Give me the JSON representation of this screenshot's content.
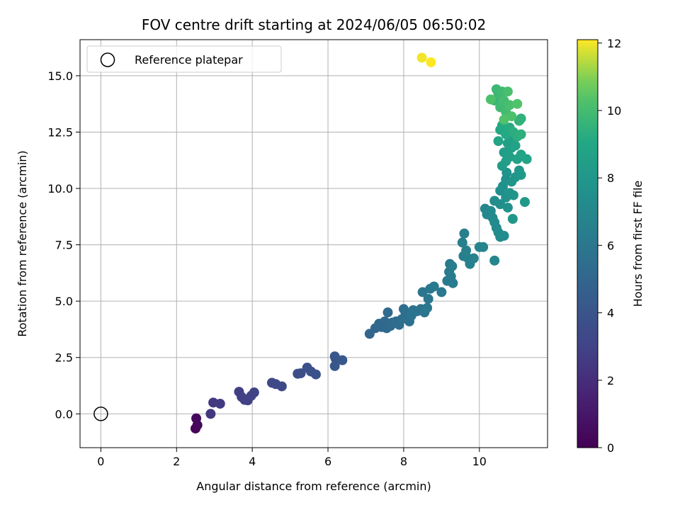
{
  "chart_data": {
    "type": "scatter",
    "title": "FOV centre drift starting at 2024/06/05 06:50:02",
    "xlabel": "Angular distance from reference (arcmin)",
    "ylabel": "Rotation from reference (arcmin)",
    "xlim": [
      -0.55,
      11.8
    ],
    "ylim": [
      -1.5,
      16.6
    ],
    "xticks": [
      0,
      2,
      4,
      6,
      8,
      10
    ],
    "xtick_labels": [
      "0",
      "2",
      "4",
      "6",
      "8",
      "10"
    ],
    "yticks": [
      0,
      2.5,
      5,
      7.5,
      10,
      12.5,
      15
    ],
    "ytick_labels": [
      "0.0",
      "2.5",
      "5.0",
      "7.5",
      "10.0",
      "12.5",
      "15.0"
    ],
    "grid": true,
    "legend": {
      "position": "top-left",
      "entries": [
        "Reference platepar"
      ]
    },
    "reference_point": {
      "x": 0,
      "y": 0,
      "label": "Reference platepar"
    },
    "colorbar": {
      "label": "Hours from first FF file",
      "range": [
        0,
        12.1
      ],
      "ticks": [
        0,
        2,
        4,
        6,
        8,
        10,
        12
      ],
      "tick_labels": [
        "0",
        "2",
        "4",
        "6",
        "8",
        "10",
        "12"
      ],
      "colormap": "viridis"
    },
    "points": [
      {
        "x": 2.5,
        "y": -0.65,
        "h": 0.2
      },
      {
        "x": 2.55,
        "y": -0.5,
        "h": 0.3
      },
      {
        "x": 2.52,
        "y": -0.2,
        "h": 0.4
      },
      {
        "x": 2.9,
        "y": 0.0,
        "h": 2.4
      },
      {
        "x": 2.97,
        "y": 0.5,
        "h": 2.5
      },
      {
        "x": 3.15,
        "y": 0.45,
        "h": 2.6
      },
      {
        "x": 3.65,
        "y": 0.98,
        "h": 2.8
      },
      {
        "x": 3.72,
        "y": 0.75,
        "h": 2.8
      },
      {
        "x": 3.8,
        "y": 0.62,
        "h": 2.9
      },
      {
        "x": 3.88,
        "y": 0.6,
        "h": 2.9
      },
      {
        "x": 3.97,
        "y": 0.8,
        "h": 3.0
      },
      {
        "x": 4.05,
        "y": 0.95,
        "h": 3.0
      },
      {
        "x": 4.52,
        "y": 1.38,
        "h": 3.3
      },
      {
        "x": 4.62,
        "y": 1.32,
        "h": 3.3
      },
      {
        "x": 4.78,
        "y": 1.22,
        "h": 3.4
      },
      {
        "x": 5.2,
        "y": 1.78,
        "h": 3.6
      },
      {
        "x": 5.28,
        "y": 1.8,
        "h": 3.6
      },
      {
        "x": 5.45,
        "y": 2.05,
        "h": 3.7
      },
      {
        "x": 5.55,
        "y": 1.88,
        "h": 3.7
      },
      {
        "x": 5.68,
        "y": 1.75,
        "h": 3.8
      },
      {
        "x": 6.18,
        "y": 2.55,
        "h": 4.1
      },
      {
        "x": 6.2,
        "y": 2.45,
        "h": 4.1
      },
      {
        "x": 6.18,
        "y": 2.12,
        "h": 4.2
      },
      {
        "x": 6.38,
        "y": 2.38,
        "h": 4.2
      },
      {
        "x": 7.1,
        "y": 3.55,
        "h": 5.0
      },
      {
        "x": 7.25,
        "y": 3.8,
        "h": 5.0
      },
      {
        "x": 7.35,
        "y": 4.0,
        "h": 5.1
      },
      {
        "x": 7.42,
        "y": 3.85,
        "h": 5.1
      },
      {
        "x": 7.5,
        "y": 4.1,
        "h": 5.2
      },
      {
        "x": 7.55,
        "y": 3.8,
        "h": 5.2
      },
      {
        "x": 7.58,
        "y": 4.5,
        "h": 5.3
      },
      {
        "x": 7.65,
        "y": 3.9,
        "h": 5.3
      },
      {
        "x": 7.7,
        "y": 4.05,
        "h": 5.3
      },
      {
        "x": 7.8,
        "y": 4.1,
        "h": 5.4
      },
      {
        "x": 7.88,
        "y": 3.95,
        "h": 5.4
      },
      {
        "x": 7.95,
        "y": 4.2,
        "h": 5.5
      },
      {
        "x": 8.0,
        "y": 4.65,
        "h": 5.5
      },
      {
        "x": 8.05,
        "y": 4.45,
        "h": 5.6
      },
      {
        "x": 8.1,
        "y": 4.3,
        "h": 5.6
      },
      {
        "x": 8.15,
        "y": 4.1,
        "h": 5.6
      },
      {
        "x": 8.2,
        "y": 4.35,
        "h": 5.7
      },
      {
        "x": 8.25,
        "y": 4.6,
        "h": 5.7
      },
      {
        "x": 8.35,
        "y": 4.55,
        "h": 5.8
      },
      {
        "x": 8.45,
        "y": 4.65,
        "h": 5.8
      },
      {
        "x": 8.5,
        "y": 5.4,
        "h": 5.9
      },
      {
        "x": 8.55,
        "y": 4.5,
        "h": 5.9
      },
      {
        "x": 8.62,
        "y": 4.7,
        "h": 6.0
      },
      {
        "x": 8.65,
        "y": 5.1,
        "h": 6.0
      },
      {
        "x": 8.7,
        "y": 5.55,
        "h": 6.0
      },
      {
        "x": 8.8,
        "y": 5.65,
        "h": 6.1
      },
      {
        "x": 9.0,
        "y": 5.4,
        "h": 6.1
      },
      {
        "x": 9.15,
        "y": 5.9,
        "h": 6.2
      },
      {
        "x": 9.2,
        "y": 6.3,
        "h": 6.2
      },
      {
        "x": 9.22,
        "y": 6.65,
        "h": 6.2
      },
      {
        "x": 9.25,
        "y": 6.1,
        "h": 6.3
      },
      {
        "x": 9.3,
        "y": 5.8,
        "h": 6.3
      },
      {
        "x": 9.28,
        "y": 6.55,
        "h": 6.3
      },
      {
        "x": 9.55,
        "y": 7.6,
        "h": 6.5
      },
      {
        "x": 9.6,
        "y": 8.0,
        "h": 6.5
      },
      {
        "x": 9.58,
        "y": 7.0,
        "h": 6.5
      },
      {
        "x": 9.65,
        "y": 7.25,
        "h": 6.6
      },
      {
        "x": 9.7,
        "y": 6.9,
        "h": 6.6
      },
      {
        "x": 9.75,
        "y": 6.65,
        "h": 6.6
      },
      {
        "x": 9.85,
        "y": 6.9,
        "h": 6.7
      },
      {
        "x": 10.0,
        "y": 7.4,
        "h": 6.8
      },
      {
        "x": 10.1,
        "y": 7.4,
        "h": 6.8
      },
      {
        "x": 10.4,
        "y": 6.8,
        "h": 6.9
      },
      {
        "x": 10.15,
        "y": 9.1,
        "h": 7.0
      },
      {
        "x": 10.2,
        "y": 8.85,
        "h": 7.0
      },
      {
        "x": 10.3,
        "y": 9.0,
        "h": 7.1
      },
      {
        "x": 10.35,
        "y": 8.7,
        "h": 7.1
      },
      {
        "x": 10.4,
        "y": 8.5,
        "h": 7.2
      },
      {
        "x": 10.45,
        "y": 8.25,
        "h": 7.2
      },
      {
        "x": 10.5,
        "y": 8.05,
        "h": 7.3
      },
      {
        "x": 10.55,
        "y": 7.85,
        "h": 7.3
      },
      {
        "x": 10.65,
        "y": 7.9,
        "h": 7.4
      },
      {
        "x": 10.4,
        "y": 9.45,
        "h": 7.4
      },
      {
        "x": 10.55,
        "y": 9.3,
        "h": 7.5
      },
      {
        "x": 10.55,
        "y": 9.9,
        "h": 7.5
      },
      {
        "x": 10.62,
        "y": 10.1,
        "h": 7.6
      },
      {
        "x": 10.7,
        "y": 9.6,
        "h": 7.6
      },
      {
        "x": 10.75,
        "y": 9.15,
        "h": 7.6
      },
      {
        "x": 10.7,
        "y": 10.4,
        "h": 7.7
      },
      {
        "x": 10.72,
        "y": 10.7,
        "h": 7.7
      },
      {
        "x": 10.8,
        "y": 9.8,
        "h": 7.8
      },
      {
        "x": 10.85,
        "y": 10.3,
        "h": 7.8
      },
      {
        "x": 10.9,
        "y": 9.7,
        "h": 7.9
      },
      {
        "x": 10.95,
        "y": 10.5,
        "h": 7.9
      },
      {
        "x": 10.88,
        "y": 8.65,
        "h": 8.0
      },
      {
        "x": 11.05,
        "y": 10.8,
        "h": 8.0
      },
      {
        "x": 11.1,
        "y": 10.6,
        "h": 8.1
      },
      {
        "x": 11.2,
        "y": 9.4,
        "h": 8.1
      },
      {
        "x": 10.6,
        "y": 11.0,
        "h": 8.3
      },
      {
        "x": 10.65,
        "y": 11.6,
        "h": 8.4
      },
      {
        "x": 10.7,
        "y": 11.2,
        "h": 8.4
      },
      {
        "x": 10.75,
        "y": 12.0,
        "h": 8.5
      },
      {
        "x": 10.8,
        "y": 11.4,
        "h": 8.5
      },
      {
        "x": 10.85,
        "y": 11.8,
        "h": 8.6
      },
      {
        "x": 10.9,
        "y": 12.2,
        "h": 8.6
      },
      {
        "x": 10.95,
        "y": 11.9,
        "h": 8.7
      },
      {
        "x": 11.0,
        "y": 11.3,
        "h": 8.7
      },
      {
        "x": 11.1,
        "y": 11.5,
        "h": 8.8
      },
      {
        "x": 11.25,
        "y": 11.3,
        "h": 8.8
      },
      {
        "x": 10.5,
        "y": 12.1,
        "h": 8.9
      },
      {
        "x": 10.55,
        "y": 12.6,
        "h": 9.0
      },
      {
        "x": 10.6,
        "y": 12.8,
        "h": 9.1
      },
      {
        "x": 10.7,
        "y": 12.4,
        "h": 9.1
      },
      {
        "x": 10.8,
        "y": 12.7,
        "h": 9.2
      },
      {
        "x": 10.9,
        "y": 12.5,
        "h": 9.3
      },
      {
        "x": 11.0,
        "y": 12.3,
        "h": 9.3
      },
      {
        "x": 11.1,
        "y": 12.4,
        "h": 9.4
      },
      {
        "x": 11.05,
        "y": 13.0,
        "h": 9.5
      },
      {
        "x": 11.1,
        "y": 13.1,
        "h": 9.5
      },
      {
        "x": 10.4,
        "y": 13.9,
        "h": 9.7
      },
      {
        "x": 10.5,
        "y": 14.2,
        "h": 9.8
      },
      {
        "x": 10.45,
        "y": 14.4,
        "h": 9.8
      },
      {
        "x": 10.55,
        "y": 13.6,
        "h": 9.9
      },
      {
        "x": 10.6,
        "y": 14.3,
        "h": 9.9
      },
      {
        "x": 10.65,
        "y": 13.9,
        "h": 10.0
      },
      {
        "x": 10.7,
        "y": 13.4,
        "h": 10.0
      },
      {
        "x": 10.75,
        "y": 14.3,
        "h": 10.1
      },
      {
        "x": 10.8,
        "y": 13.7,
        "h": 10.1
      },
      {
        "x": 10.85,
        "y": 13.2,
        "h": 10.2
      },
      {
        "x": 10.3,
        "y": 13.95,
        "h": 10.2
      },
      {
        "x": 11.0,
        "y": 13.75,
        "h": 10.3
      },
      {
        "x": 10.65,
        "y": 13.05,
        "h": 10.3
      },
      {
        "x": 8.48,
        "y": 15.8,
        "h": 12.0
      },
      {
        "x": 8.72,
        "y": 15.6,
        "h": 12.1
      }
    ]
  }
}
